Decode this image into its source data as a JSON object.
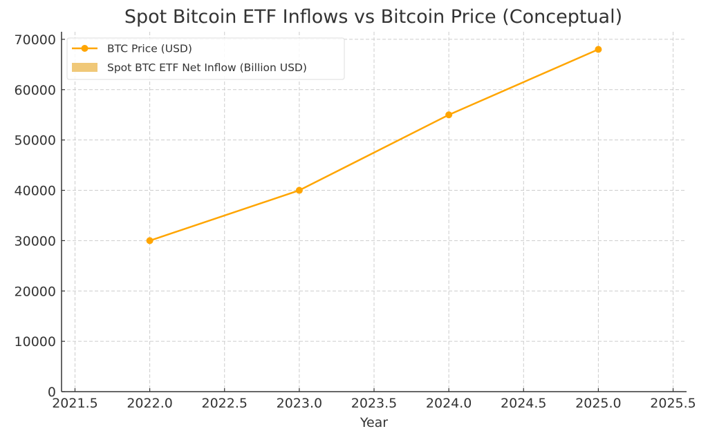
{
  "chart_data": {
    "type": "line",
    "title": "Spot Bitcoin ETF Inflows vs Bitcoin Price (Conceptual)",
    "xlabel": "Year",
    "ylabel": "",
    "xlim": [
      2021.41,
      2025.59
    ],
    "ylim": [
      0,
      71500
    ],
    "grid": true,
    "legend_position": "top-left",
    "x_ticks": [
      2021.5,
      2022.0,
      2022.5,
      2023.0,
      2023.5,
      2024.0,
      2024.5,
      2025.0,
      2025.5
    ],
    "x_tick_labels": [
      "2021.5",
      "2022.0",
      "2022.5",
      "2023.0",
      "2023.5",
      "2024.0",
      "2024.5",
      "2025.0",
      "2025.5"
    ],
    "y_ticks": [
      0,
      10000,
      20000,
      30000,
      40000,
      50000,
      60000,
      70000
    ],
    "y_tick_labels": [
      "0",
      "10000",
      "20000",
      "30000",
      "40000",
      "50000",
      "60000",
      "70000"
    ],
    "x": [
      2022,
      2023,
      2024,
      2025
    ],
    "series": [
      {
        "name": "BTC Price (USD)",
        "kind": "line",
        "color": "#FFA500",
        "values": [
          30000,
          40000,
          55000,
          68000
        ]
      },
      {
        "name": "Spot BTC ETF Net Inflow (Billion USD)",
        "kind": "bar",
        "color": "#F0C878",
        "values": [
          0,
          0,
          0,
          0
        ]
      }
    ]
  },
  "colors": {
    "grid": "#cccccc",
    "axis": "#333333",
    "text": "#333333"
  }
}
